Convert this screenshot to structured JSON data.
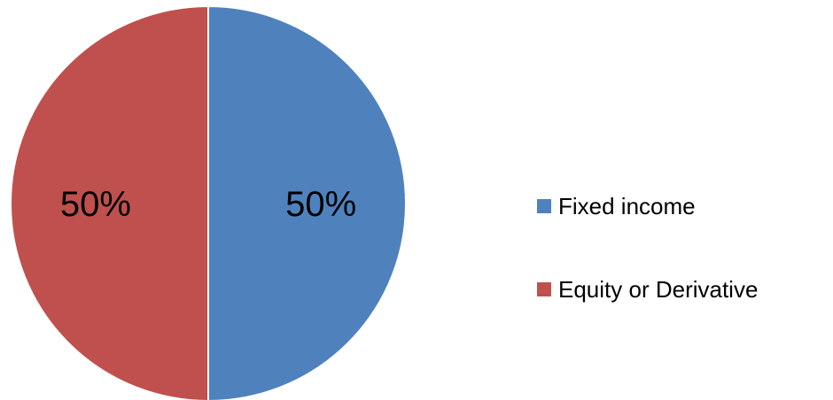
{
  "chart_data": {
    "type": "pie",
    "categories": [
      "Fixed income",
      "Equity or Derivative"
    ],
    "values": [
      50,
      50
    ],
    "data_labels": [
      "50%",
      "50%"
    ],
    "colors": [
      "#4f81bd",
      "#c0504d"
    ],
    "legend_position": "right"
  }
}
